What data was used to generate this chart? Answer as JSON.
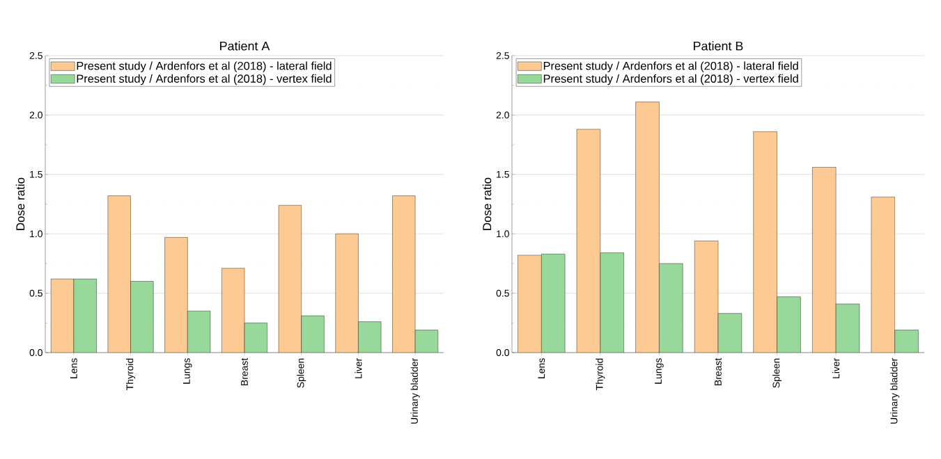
{
  "chart_data": [
    {
      "type": "bar",
      "title": "Patient A",
      "ylabel": "Dose ratio",
      "categories": [
        "Lens",
        "Thyroid",
        "Lungs",
        "Breast",
        "Spleen",
        "Liver",
        "Urinary bladder"
      ],
      "series": [
        {
          "name": "Present study / Ardenfors et al (2018) - lateral field",
          "color": "#fdca93",
          "values": [
            0.62,
            1.32,
            0.97,
            0.71,
            1.24,
            1.0,
            1.32
          ]
        },
        {
          "name": "Present study / Ardenfors et al (2018) - vertex field",
          "color": "#98d89a",
          "values": [
            0.62,
            0.6,
            0.35,
            0.25,
            0.31,
            0.26,
            0.19
          ]
        }
      ],
      "ylim": [
        0,
        2.5
      ],
      "yticks": [
        {
          "value": 0,
          "label": "0.0"
        },
        {
          "value": 0.25,
          "label": null
        },
        {
          "value": 0.5,
          "label": "0.5"
        },
        {
          "value": 0.75,
          "label": null
        },
        {
          "value": 1,
          "label": "1.0"
        },
        {
          "value": 1.25,
          "label": null
        },
        {
          "value": 1.5,
          "label": "1.5"
        },
        {
          "value": 1.75,
          "label": null
        },
        {
          "value": 2,
          "label": "2.0"
        },
        {
          "value": 2.25,
          "label": null
        },
        {
          "value": 2.5,
          "label": "2.5"
        }
      ],
      "grid": "y",
      "legend": "top left"
    },
    {
      "type": "bar",
      "title": "Patient B",
      "ylabel": "Dose ratio",
      "categories": [
        "Lens",
        "Thyroid",
        "Lungs",
        "Breast",
        "Spleen",
        "Liver",
        "Urinary bladder"
      ],
      "series": [
        {
          "name": "Present study / Ardenfors et al (2018) - lateral field",
          "color": "#fdca93",
          "values": [
            0.82,
            1.88,
            2.11,
            0.94,
            1.86,
            1.56,
            1.31
          ]
        },
        {
          "name": "Present study / Ardenfors et al (2018) - vertex field",
          "color": "#98d89a",
          "values": [
            0.83,
            0.84,
            0.75,
            0.33,
            0.47,
            0.41,
            0.19
          ]
        }
      ],
      "ylim": [
        0,
        2.5
      ],
      "yticks": [
        {
          "value": 0,
          "label": "0.0"
        },
        {
          "value": 0.25,
          "label": null
        },
        {
          "value": 0.5,
          "label": "0.5"
        },
        {
          "value": 0.75,
          "label": null
        },
        {
          "value": 1,
          "label": "1.0"
        },
        {
          "value": 1.25,
          "label": null
        },
        {
          "value": 1.5,
          "label": "1.5"
        },
        {
          "value": 1.75,
          "label": null
        },
        {
          "value": 2,
          "label": "2.0"
        },
        {
          "value": 2.25,
          "label": null
        },
        {
          "value": 2.5,
          "label": "2.5"
        }
      ],
      "grid": "y",
      "legend": "top left"
    }
  ]
}
